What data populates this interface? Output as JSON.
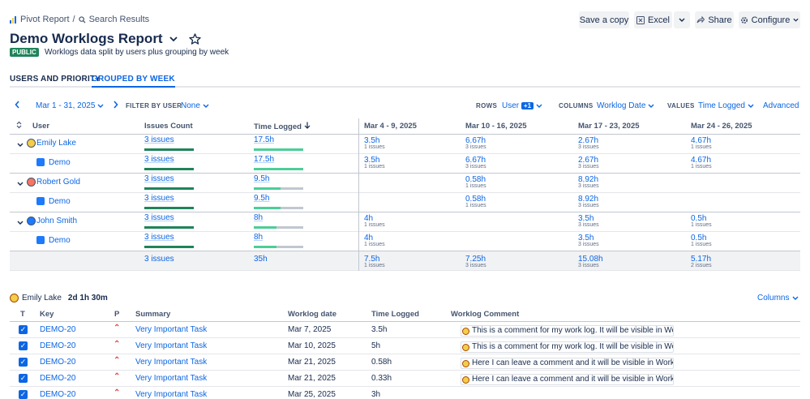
{
  "breadcrumb": {
    "root": "Pivot Report",
    "separator": "/",
    "current": "Search Results"
  },
  "toolbar": {
    "save_copy": "Save a copy",
    "excel": "Excel",
    "share": "Share",
    "configure": "Configure"
  },
  "report": {
    "title": "Demo Worklogs Report",
    "badge": "PUBLIC",
    "description": "Worklogs data split by users plus grouping by week"
  },
  "tabs": [
    {
      "label": "USERS AND PRIORITY"
    },
    {
      "label": "GROUPED BY WEEK",
      "active": true
    }
  ],
  "filters": {
    "date_range": "Mar 1 - 31, 2025",
    "filter_by_user_label": "FILTER BY USER",
    "filter_by_user_value": "None",
    "rows_label": "ROWS",
    "rows_value": "User",
    "rows_extra": "+1",
    "columns_label": "COLUMNS",
    "columns_value": "Worklog Date",
    "values_label": "VALUES",
    "values_value": "Time Logged",
    "advanced": "Advanced"
  },
  "pivot": {
    "headers": {
      "user": "User",
      "issues_count": "Issues Count",
      "time_logged": "Time Logged"
    },
    "weeks": [
      "Mar 4 - 9, 2025",
      "Mar 10 - 16, 2025",
      "Mar 17 - 23, 2025",
      "Mar 24 - 26, 2025"
    ],
    "rows": [
      {
        "label": "Emily Lake",
        "issues": "3 issues",
        "issues_fill": 1.0,
        "time": "17.5h",
        "time_fill": 1.0,
        "cells": [
          {
            "v": "3.5h",
            "c": "1 issues"
          },
          {
            "v": "6.67h",
            "c": "3 issues"
          },
          {
            "v": "2.67h",
            "c": "3 issues"
          },
          {
            "v": "4.67h",
            "c": "1 issues"
          }
        ]
      },
      {
        "label": "Demo",
        "issues": "3 issues",
        "issues_fill": 1.0,
        "time": "17.5h",
        "time_fill": 1.0,
        "cells": [
          {
            "v": "3.5h",
            "c": "1 issues"
          },
          {
            "v": "6.67h",
            "c": "3 issues"
          },
          {
            "v": "2.67h",
            "c": "3 issues"
          },
          {
            "v": "4.67h",
            "c": "1 issues"
          }
        ]
      },
      {
        "label": "Robert Gold",
        "issues": "3 issues",
        "issues_fill": 1.0,
        "time": "9.5h",
        "time_fill": 0.54,
        "cells": [
          {
            "v": "",
            "c": ""
          },
          {
            "v": "0.58h",
            "c": "1 issues"
          },
          {
            "v": "8.92h",
            "c": "3 issues"
          },
          {
            "v": "",
            "c": ""
          }
        ]
      },
      {
        "label": "Demo",
        "issues": "3 issues",
        "issues_fill": 1.0,
        "time": "9.5h",
        "time_fill": 0.54,
        "cells": [
          {
            "v": "",
            "c": ""
          },
          {
            "v": "0.58h",
            "c": "1 issues"
          },
          {
            "v": "8.92h",
            "c": "3 issues"
          },
          {
            "v": "",
            "c": ""
          }
        ]
      },
      {
        "label": "John Smith",
        "issues": "3 issues",
        "issues_fill": 1.0,
        "time": "8h",
        "time_fill": 0.46,
        "cells": [
          {
            "v": "4h",
            "c": "1 issues"
          },
          {
            "v": "",
            "c": ""
          },
          {
            "v": "3.5h",
            "c": "3 issues"
          },
          {
            "v": "0.5h",
            "c": "1 issues"
          }
        ]
      },
      {
        "label": "Demo",
        "issues": "3 issues",
        "issues_fill": 1.0,
        "time": "8h",
        "time_fill": 0.46,
        "cells": [
          {
            "v": "4h",
            "c": "1 issues"
          },
          {
            "v": "",
            "c": ""
          },
          {
            "v": "3.5h",
            "c": "3 issues"
          },
          {
            "v": "0.5h",
            "c": "1 issues"
          }
        ]
      }
    ],
    "totals": {
      "issues": "3 issues",
      "time": "35h",
      "cells": [
        {
          "v": "7.5h",
          "c": "1 issues"
        },
        {
          "v": "7.25h",
          "c": "3 issues"
        },
        {
          "v": "15.08h",
          "c": "3 issues"
        },
        {
          "v": "5.17h",
          "c": "2 issues"
        }
      ]
    }
  },
  "detail": {
    "user": "Emily Lake",
    "total": "2d 1h 30m",
    "columns_button": "Columns",
    "headers": {
      "t": "T",
      "key": "Key",
      "p": "P",
      "summary": "Summary",
      "date": "Worklog date",
      "time": "Time Logged",
      "comment": "Worklog Comment"
    },
    "rows": [
      {
        "key": "DEMO-20",
        "summary": "Very Important Task",
        "date": "Mar 7, 2025",
        "time": "3.5h",
        "comment": "This is a comment for my work log. It will be visible in Workl..."
      },
      {
        "key": "DEMO-20",
        "summary": "Very Important Task",
        "date": "Mar 10, 2025",
        "time": "5h",
        "comment": "This is a comment for my work log. It will be visible in Workl..."
      },
      {
        "key": "DEMO-20",
        "summary": "Very Important Task",
        "date": "Mar 21, 2025",
        "time": "0.58h",
        "comment": "Here I can leave a comment and it will be visible in Worklogs..."
      },
      {
        "key": "DEMO-20",
        "summary": "Very Important Task",
        "date": "Mar 21, 2025",
        "time": "0.33h",
        "comment": "Here I can leave a comment and it will be visible in Worklogs..."
      },
      {
        "key": "DEMO-20",
        "summary": "Very Important Task",
        "date": "Mar 25, 2025",
        "time": "3h",
        "comment": ""
      }
    ]
  },
  "colors": {
    "accent": "#0c66e4",
    "bar_green": "#1f845a",
    "bar_light_green": "#4bce97",
    "public_badge": "#1f845a"
  }
}
